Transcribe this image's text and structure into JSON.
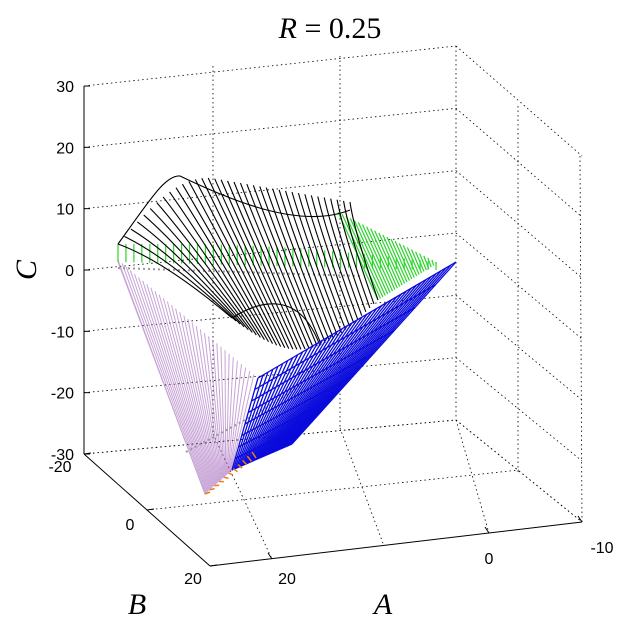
{
  "chart_data": {
    "type": "surface3d",
    "title": "R = 0.25",
    "title_var": "R",
    "title_rest": " = 0.25",
    "xlabel": "A",
    "ylabel": "B",
    "zlabel": "C",
    "x_ticks": [
      "20",
      "0",
      "-10"
    ],
    "y_ticks": [
      "-20",
      "0",
      "20"
    ],
    "z_ticks": [
      "30",
      "20",
      "10",
      "0",
      "-10",
      "-20",
      "-30"
    ],
    "xlim": [
      20,
      -10
    ],
    "ylim": [
      -20,
      20
    ],
    "zlim": [
      -30,
      30
    ],
    "grid": true,
    "series": [
      {
        "color": "#9b59b6",
        "approx_C_range": [
          -35,
          5
        ]
      },
      {
        "color": "#000000",
        "approx_C_range": [
          -5,
          15
        ]
      },
      {
        "color": "#2bd42b",
        "approx_C_range": [
          -2,
          3
        ]
      },
      {
        "color": "#0a0adc",
        "approx_C_range": [
          -30,
          0
        ]
      },
      {
        "color": "#f07a1a",
        "approx_C_range": [
          -32,
          -28
        ]
      }
    ]
  }
}
